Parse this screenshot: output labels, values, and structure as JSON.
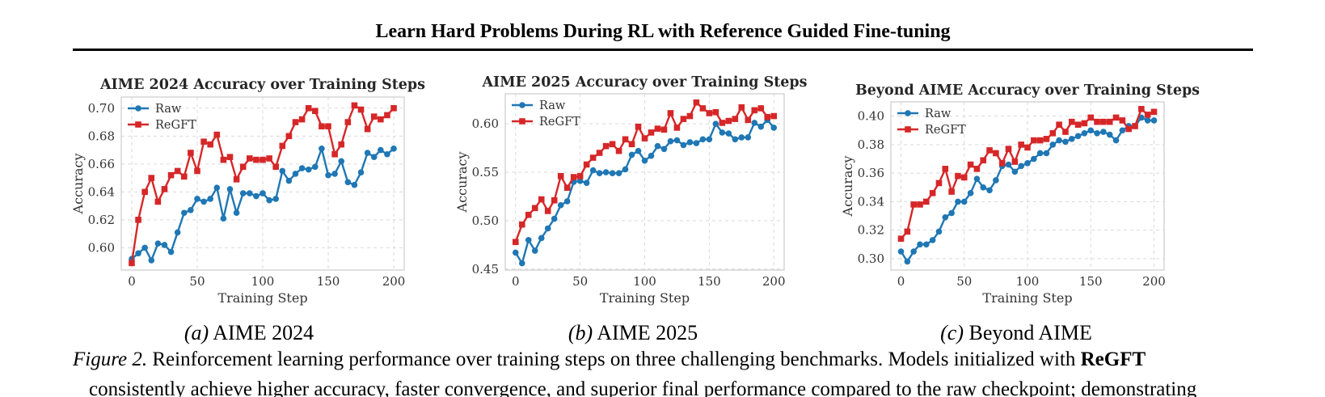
{
  "figure_title": "Learn Hard Problems During RL with Reference Guided Fine-tuning",
  "subcaptions": [
    {
      "label": "(a)",
      "text": "AIME 2024"
    },
    {
      "label": "(b)",
      "text": "AIME 2025"
    },
    {
      "label": "(c)",
      "text": "Beyond AIME"
    }
  ],
  "caption": {
    "label": "Figure 2.",
    "text": "Reinforcement learning performance over training steps on three challenging benchmarks. Models initialized with",
    "bold": "ReGFT",
    "line2": "consistently achieve higher accuracy, faster convergence, and superior final performance compared to the raw checkpoint; demonstrating"
  },
  "colors": {
    "raw": "#1f77b4",
    "regft": "#d62728"
  },
  "chart_data": [
    {
      "type": "line",
      "title": "AIME 2024 Accuracy over Training Steps",
      "xlabel": "Training Step",
      "ylabel": "Accuracy",
      "xlim": [
        -8,
        208
      ],
      "ylim": [
        0.584,
        0.708
      ],
      "xticks": [
        0,
        50,
        100,
        150,
        200
      ],
      "yticks": [
        0.6,
        0.62,
        0.64,
        0.66,
        0.68,
        0.7
      ],
      "ytick_labels": [
        "0.60",
        "0.62",
        "0.64",
        "0.66",
        "0.68",
        "0.70"
      ],
      "grid": true,
      "legend": "top-left",
      "x": [
        0,
        5,
        10,
        15,
        20,
        25,
        30,
        35,
        40,
        45,
        50,
        55,
        60,
        65,
        70,
        75,
        80,
        85,
        90,
        95,
        100,
        105,
        110,
        115,
        120,
        125,
        130,
        135,
        140,
        145,
        150,
        155,
        160,
        165,
        170,
        175,
        180,
        185,
        190,
        195,
        200
      ],
      "series": [
        {
          "name": "Raw",
          "values": [
            0.592,
            0.596,
            0.6,
            0.591,
            0.603,
            0.602,
            0.597,
            0.611,
            0.625,
            0.627,
            0.635,
            0.633,
            0.635,
            0.643,
            0.621,
            0.642,
            0.625,
            0.639,
            0.639,
            0.637,
            0.639,
            0.634,
            0.635,
            0.655,
            0.648,
            0.653,
            0.657,
            0.656,
            0.658,
            0.671,
            0.652,
            0.653,
            0.662,
            0.647,
            0.645,
            0.654,
            0.668,
            0.665,
            0.67,
            0.667,
            0.671
          ]
        },
        {
          "name": "ReGFT",
          "values": [
            0.589,
            0.62,
            0.64,
            0.65,
            0.633,
            0.642,
            0.652,
            0.655,
            0.651,
            0.668,
            0.655,
            0.676,
            0.674,
            0.681,
            0.663,
            0.665,
            0.649,
            0.658,
            0.664,
            0.663,
            0.663,
            0.664,
            0.658,
            0.673,
            0.68,
            0.69,
            0.692,
            0.7,
            0.698,
            0.687,
            0.687,
            0.667,
            0.674,
            0.69,
            0.702,
            0.699,
            0.685,
            0.694,
            0.692,
            0.695,
            0.7
          ]
        }
      ]
    },
    {
      "type": "line",
      "title": "AIME 2025 Accuracy over Training Steps",
      "xlabel": "Training Step",
      "ylabel": "Accuracy",
      "xlim": [
        -8,
        208
      ],
      "ylim": [
        0.449,
        0.631
      ],
      "xticks": [
        0,
        50,
        100,
        150,
        200
      ],
      "yticks": [
        0.45,
        0.5,
        0.55,
        0.6
      ],
      "ytick_labels": [
        "0.45",
        "0.50",
        "0.55",
        "0.60"
      ],
      "grid": true,
      "legend": "top-left",
      "x": [
        0,
        5,
        10,
        15,
        20,
        25,
        30,
        35,
        40,
        45,
        50,
        55,
        60,
        65,
        70,
        75,
        80,
        85,
        90,
        95,
        100,
        105,
        110,
        115,
        120,
        125,
        130,
        135,
        140,
        145,
        150,
        155,
        160,
        165,
        170,
        175,
        180,
        185,
        190,
        195,
        200
      ],
      "series": [
        {
          "name": "Raw",
          "values": [
            0.467,
            0.456,
            0.48,
            0.469,
            0.482,
            0.492,
            0.502,
            0.516,
            0.52,
            0.54,
            0.541,
            0.539,
            0.552,
            0.549,
            0.55,
            0.549,
            0.549,
            0.553,
            0.568,
            0.572,
            0.562,
            0.567,
            0.577,
            0.574,
            0.582,
            0.583,
            0.578,
            0.581,
            0.58,
            0.584,
            0.584,
            0.6,
            0.591,
            0.59,
            0.584,
            0.586,
            0.586,
            0.601,
            0.597,
            0.604,
            0.596
          ]
        },
        {
          "name": "ReGFT",
          "values": [
            0.478,
            0.496,
            0.506,
            0.513,
            0.522,
            0.51,
            0.521,
            0.546,
            0.534,
            0.545,
            0.546,
            0.558,
            0.565,
            0.57,
            0.577,
            0.579,
            0.572,
            0.584,
            0.579,
            0.597,
            0.585,
            0.591,
            0.595,
            0.594,
            0.611,
            0.596,
            0.605,
            0.608,
            0.622,
            0.616,
            0.611,
            0.612,
            0.601,
            0.603,
            0.605,
            0.617,
            0.604,
            0.614,
            0.616,
            0.607,
            0.608
          ]
        }
      ]
    },
    {
      "type": "line",
      "title": "Beyond AIME Accuracy over Training Steps",
      "xlabel": "Training Step",
      "ylabel": "Accuracy",
      "xlim": [
        -8,
        208
      ],
      "ylim": [
        0.292,
        0.41
      ],
      "xticks": [
        0,
        50,
        100,
        150,
        200
      ],
      "yticks": [
        0.3,
        0.32,
        0.34,
        0.36,
        0.38,
        0.4
      ],
      "ytick_labels": [
        "0.30",
        "0.32",
        "0.34",
        "0.36",
        "0.38",
        "0.40"
      ],
      "grid": true,
      "legend": "top-left",
      "x": [
        0,
        5,
        10,
        15,
        20,
        25,
        30,
        35,
        40,
        45,
        50,
        55,
        60,
        65,
        70,
        75,
        80,
        85,
        90,
        95,
        100,
        105,
        110,
        115,
        120,
        125,
        130,
        135,
        140,
        145,
        150,
        155,
        160,
        165,
        170,
        175,
        180,
        185,
        190,
        195,
        200
      ],
      "series": [
        {
          "name": "Raw",
          "values": [
            0.305,
            0.298,
            0.305,
            0.31,
            0.31,
            0.313,
            0.319,
            0.329,
            0.332,
            0.34,
            0.34,
            0.346,
            0.356,
            0.35,
            0.348,
            0.355,
            0.365,
            0.366,
            0.361,
            0.365,
            0.367,
            0.37,
            0.374,
            0.374,
            0.38,
            0.383,
            0.382,
            0.384,
            0.386,
            0.388,
            0.39,
            0.388,
            0.389,
            0.387,
            0.383,
            0.39,
            0.393,
            0.393,
            0.399,
            0.397,
            0.397
          ]
        },
        {
          "name": "ReGFT",
          "values": [
            0.314,
            0.319,
            0.338,
            0.338,
            0.34,
            0.346,
            0.353,
            0.363,
            0.347,
            0.358,
            0.357,
            0.366,
            0.363,
            0.369,
            0.376,
            0.374,
            0.367,
            0.377,
            0.368,
            0.38,
            0.378,
            0.383,
            0.383,
            0.384,
            0.388,
            0.394,
            0.389,
            0.396,
            0.394,
            0.395,
            0.399,
            0.396,
            0.396,
            0.396,
            0.399,
            0.397,
            0.391,
            0.393,
            0.405,
            0.401,
            0.403
          ]
        }
      ]
    }
  ]
}
